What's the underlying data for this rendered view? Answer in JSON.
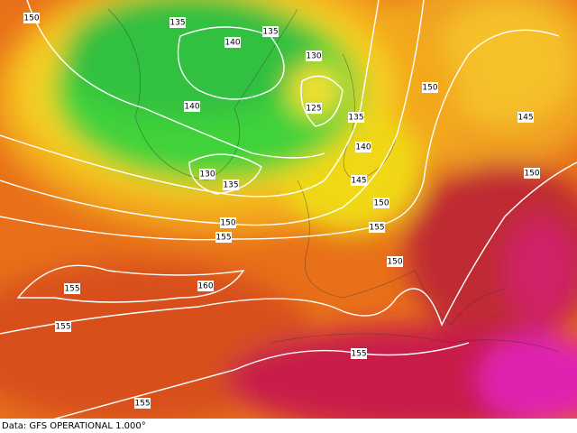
{
  "map": {
    "contour_labels": [
      "150",
      "135",
      "140",
      "135",
      "130",
      "140",
      "125",
      "135",
      "150",
      "145",
      "140",
      "130",
      "135",
      "145",
      "150",
      "150",
      "150",
      "155",
      "155",
      "150",
      "155",
      "160",
      "155",
      "155",
      "155"
    ],
    "footer": {
      "source": "Data: GFS OPERATIONAL 1.000°"
    }
  }
}
